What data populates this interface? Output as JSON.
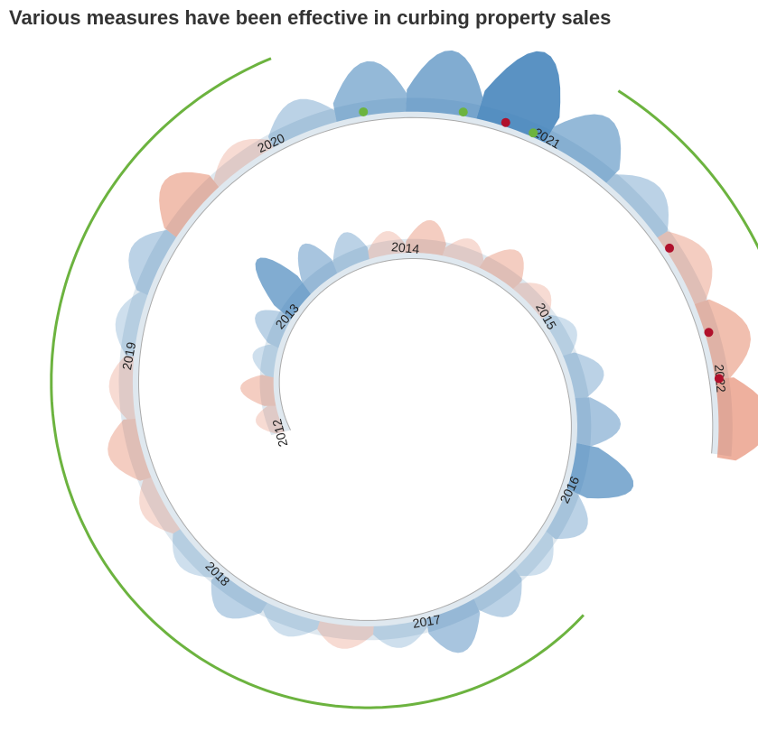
{
  "chart_data": {
    "type": "spiral",
    "title": "Various measures have been effective in curbing property sales",
    "years": [
      2012,
      2013,
      2014,
      2015,
      2016,
      2017,
      2018,
      2019,
      2020,
      2021,
      2022
    ],
    "start": 2012.5,
    "step": 0.25,
    "values": [
      -1,
      -2,
      1,
      2,
      5,
      3,
      2,
      -1,
      -2,
      -1,
      -2,
      -1,
      1,
      2,
      3,
      5,
      2,
      1,
      2,
      3,
      1,
      -1,
      1,
      2,
      1,
      -1,
      -2,
      -1,
      1,
      2,
      -3,
      -1,
      2,
      4,
      5,
      7,
      4,
      2,
      -2,
      -3,
      -4
    ],
    "colors": {
      "positive": "#3d7fb8",
      "negative": "#e0704e",
      "measures": "#6cb33f",
      "band": "#dfe8ef"
    },
    "measures": [
      {
        "start": 2016.9,
        "end": 2020.6
      },
      {
        "start": 2021.6,
        "end": 2022.6
      }
    ],
    "dots": [
      {
        "x": 2020.85,
        "color": "#6cb33f"
      },
      {
        "x": 2021.2,
        "color": "#6cb33f"
      },
      {
        "x": 2021.35,
        "color": "#b0102c"
      },
      {
        "x": 2021.45,
        "color": "#6cb33f"
      },
      {
        "x": 2022.05,
        "color": "#b0102c"
      },
      {
        "x": 2022.35,
        "color": "#b0102c"
      },
      {
        "x": 2022.5,
        "color": "#b0102c"
      }
    ]
  }
}
